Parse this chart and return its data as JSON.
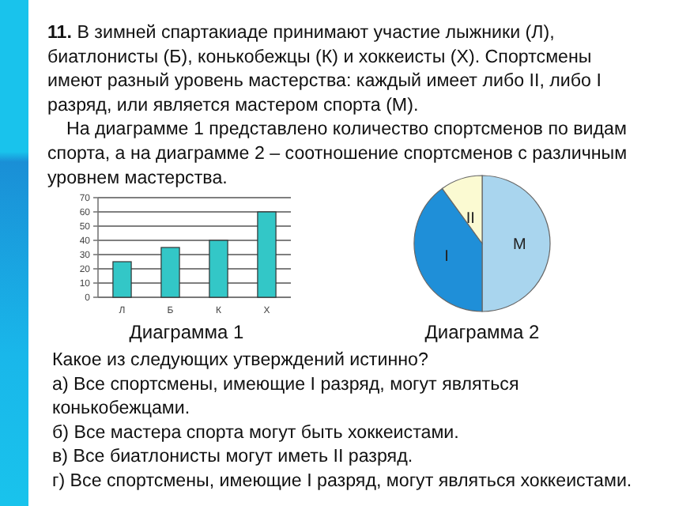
{
  "chart_data": [
    {
      "type": "bar",
      "title": "Диаграмма 1",
      "categories": [
        "Л",
        "Б",
        "К",
        "Х"
      ],
      "values": [
        25,
        35,
        40,
        60
      ],
      "color": "#33c7c7",
      "ylim": [
        0,
        70
      ],
      "yticks": [
        0,
        10,
        20,
        30,
        40,
        50,
        60,
        70
      ],
      "grid": "y",
      "annotations": [
        "11.",
        "В зимней спартакиаде принимают участие лыжники (Л),",
        "биатлонисты (Б), конькобежцы (К) и хоккеисты (Х). Спортсмены",
        "имеют разный уровень мастерства: каждый имеет либо II, либо I",
        "разряд, или является мастером спорта (М).",
        "На диаграмме 1 представлено количество спортсменов по видам",
        "спорта, а на диаграмме 2 – соотношение спортсменов с различным",
        "уровнем мастерства."
      ]
    },
    {
      "type": "pie",
      "title": "Диаграмма 2",
      "categories": [
        "М",
        "I",
        "II"
      ],
      "values": [
        50,
        40,
        10
      ],
      "colors": [
        "#a9d5ee",
        "#1f8fd8",
        "#fbfad2"
      ],
      "annotations": [
        "Какое из следующих утверждений истинно?",
        "а) Все спортсмены, имеющие I разряд, могут являться",
        "конькобежцами.",
        "б) Все мастера спорта могут быть хоккеистами.",
        "в) Все биатлонисты могут иметь II разряд.",
        "г) Все спортсмены, имеющие I разряд, могут являться хоккеистами."
      ]
    }
  ]
}
